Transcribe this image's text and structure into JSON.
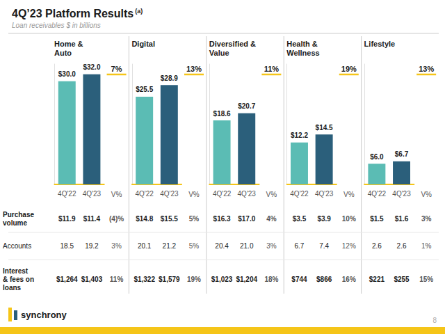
{
  "chart_data": {
    "type": "bar",
    "title": "4Q’23 Platform Results",
    "title_note": "(a)",
    "subtitle": "Loan receivables $ in billions",
    "categories": [
      "Home &\nAuto",
      "Digital",
      "Diversified &\nValue",
      "Health &\nWellness",
      "Lifestyle"
    ],
    "series": [
      {
        "name": "4Q'22",
        "color": "#5BBCB4",
        "values": [
          30.0,
          25.5,
          18.6,
          12.2,
          6.0
        ],
        "value_labels": [
          "$30.0",
          "$25.5",
          "$18.6",
          "$12.2",
          "$6.0"
        ]
      },
      {
        "name": "4Q'23",
        "color": "#2B5F7B",
        "values": [
          32.0,
          28.9,
          20.7,
          14.5,
          6.7
        ],
        "value_labels": [
          "$32.0",
          "$28.9",
          "$20.7",
          "$14.5",
          "$6.7"
        ]
      }
    ],
    "ylim": [
      0,
      35
    ],
    "tick_labels": "x",
    "grid": false,
    "data_labels": true,
    "annotations": [
      "7%",
      "13%",
      "11%",
      "19%",
      "13%"
    ],
    "table": {
      "change_header": "V%",
      "rows": [
        {
          "label": "Purchase\nvolume",
          "cells": [
            [
              "$11.9",
              "$11.4",
              "(4)%"
            ],
            [
              "$14.8",
              "$15.5",
              "5%"
            ],
            [
              "$16.3",
              "$17.0",
              "4%"
            ],
            [
              "$3.5",
              "$3.9",
              "10%"
            ],
            [
              "$1.5",
              "$1.6",
              "3%"
            ]
          ]
        },
        {
          "label": "Accounts",
          "cells": [
            [
              "18.5",
              "19.2",
              "3%"
            ],
            [
              "20.1",
              "21.2",
              "5%"
            ],
            [
              "20.4",
              "21.0",
              "3%"
            ],
            [
              "6.7",
              "7.4",
              "12%"
            ],
            [
              "2.6",
              "2.6",
              "1%"
            ]
          ]
        },
        {
          "label": "Interest\n& fees on\nloans",
          "cells": [
            [
              "$1,264",
              "$1,403",
              "11%"
            ],
            [
              "$1,322",
              "$1,579",
              "19%"
            ],
            [
              "$1,023",
              "$1,204",
              "18%"
            ],
            [
              "$744",
              "$866",
              "16%"
            ],
            [
              "$221",
              "$255",
              "15%"
            ]
          ]
        }
      ]
    },
    "footer": "synchrony",
    "page_number": "8"
  }
}
